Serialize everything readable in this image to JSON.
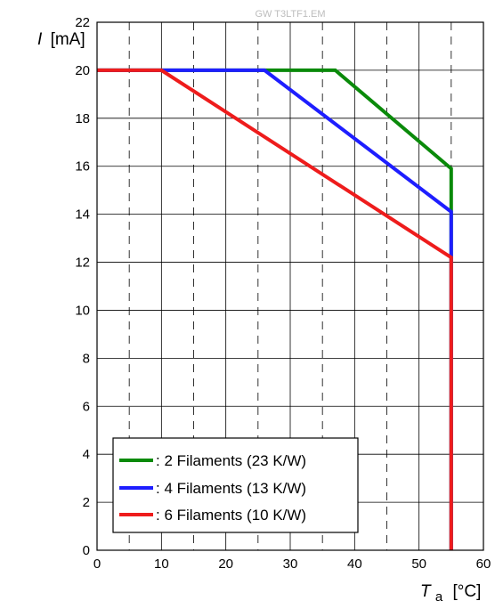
{
  "watermark": "GW T3LTF1.EM",
  "chart_data": {
    "type": "line",
    "title": "",
    "xlabel": {
      "symbol": "T",
      "subscript": "a",
      "unit": "[°C]"
    },
    "ylabel": {
      "symbol": "I",
      "unit": "[mA]"
    },
    "xlim": [
      0,
      60
    ],
    "ylim": [
      0,
      22
    ],
    "xticks": [
      "0",
      "10",
      "20",
      "30",
      "40",
      "50",
      "60"
    ],
    "yticks": [
      "0",
      "2",
      "4",
      "6",
      "8",
      "10",
      "12",
      "14",
      "16",
      "18",
      "20",
      "22"
    ],
    "grid": {
      "x": "dashed-every-5",
      "y": "solid-every-2"
    },
    "legend_position": "bottom-left",
    "series": [
      {
        "name": ": 2 Filaments (23 K/W)",
        "color": "#0a8a0a",
        "x": [
          0,
          37,
          55,
          55
        ],
        "y": [
          20,
          20,
          15.9,
          0
        ]
      },
      {
        "name": ": 4 Filaments (13 K/W)",
        "color": "#1e1eff",
        "x": [
          0,
          26,
          55,
          55
        ],
        "y": [
          20,
          20,
          14.1,
          0
        ]
      },
      {
        "name": ": 6 Filaments (10 K/W)",
        "color": "#ee1c1c",
        "x": [
          0,
          10,
          55,
          55
        ],
        "y": [
          20,
          20,
          12.2,
          0
        ]
      }
    ]
  }
}
